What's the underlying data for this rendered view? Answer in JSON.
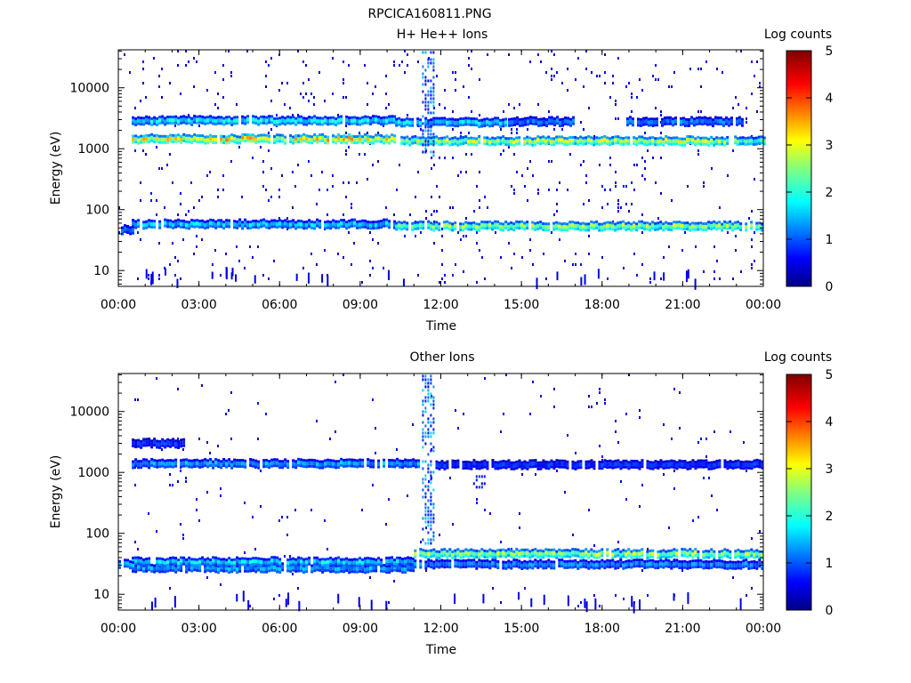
{
  "figure_title": "RPCICA160811.PNG",
  "chart_data": [
    {
      "type": "heatmap",
      "title": "H+ He++ Ions",
      "xlabel": "Time",
      "ylabel": "Energy (eV)",
      "x_ticks": [
        "00:00",
        "03:00",
        "06:00",
        "09:00",
        "12:00",
        "15:00",
        "18:00",
        "21:00",
        "00:00"
      ],
      "x_range_hours": [
        0,
        24
      ],
      "y_scale": "log",
      "y_ticks": [
        10,
        100,
        1000,
        10000
      ],
      "y_ticklabels": [
        "10",
        "100",
        "1000",
        "10000"
      ],
      "y_range": [
        5.5,
        42000
      ],
      "colorbar": {
        "label": "Log counts",
        "ticks": [
          "0",
          "1",
          "2",
          "3",
          "4",
          "5"
        ],
        "range": [
          0,
          5
        ]
      },
      "bands": [
        {
          "t0": 0.5,
          "t1": 10.3,
          "energy": 2800,
          "level": 1.7
        },
        {
          "t0": 10.3,
          "t1": 14.5,
          "energy": 2600,
          "level": 1.6
        },
        {
          "t0": 14.5,
          "t1": 16.9,
          "energy": 2700,
          "level": 1.1
        },
        {
          "t0": 18.9,
          "t1": 23.3,
          "energy": 2700,
          "level": 1.2
        },
        {
          "t0": 0.5,
          "t1": 10.3,
          "energy": 1400,
          "level": 3.0
        },
        {
          "t0": 10.5,
          "t1": 23.0,
          "energy": 1300,
          "level": 2.6
        },
        {
          "t0": 23.0,
          "t1": 24.0,
          "energy": 1300,
          "level": 2.0
        },
        {
          "t0": 0.5,
          "t1": 10.3,
          "energy": 56,
          "level": 1.5
        },
        {
          "t0": 10.3,
          "t1": 24.0,
          "energy": 52,
          "level": 2.4
        },
        {
          "t0": 0.0,
          "t1": 0.5,
          "energy": 45,
          "level": 1.0
        }
      ],
      "bursts": [
        {
          "t": 11.5,
          "e_min": 800,
          "e_max": 40000,
          "level": 1.0
        }
      ],
      "noise_density": 0.035
    },
    {
      "type": "heatmap",
      "title": "Other Ions",
      "xlabel": "Time",
      "ylabel": "Energy (eV)",
      "x_ticks": [
        "00:00",
        "03:00",
        "06:00",
        "09:00",
        "12:00",
        "15:00",
        "18:00",
        "21:00",
        "00:00"
      ],
      "x_range_hours": [
        0,
        24
      ],
      "y_scale": "log",
      "y_ticks": [
        10,
        100,
        1000,
        10000
      ],
      "y_ticklabels": [
        "10",
        "100",
        "1000",
        "10000"
      ],
      "y_range": [
        5.5,
        42000
      ],
      "colorbar": {
        "label": "Log counts",
        "ticks": [
          "0",
          "1",
          "2",
          "3",
          "4",
          "5"
        ],
        "range": [
          0,
          5
        ]
      },
      "bands": [
        {
          "t0": 0.5,
          "t1": 2.4,
          "energy": 2900,
          "level": 0.8
        },
        {
          "t0": 0.5,
          "t1": 11.2,
          "energy": 1350,
          "level": 1.3
        },
        {
          "t0": 11.8,
          "t1": 24.0,
          "energy": 1300,
          "level": 0.8
        },
        {
          "t0": 0.5,
          "t1": 11.0,
          "energy": 26,
          "level": 1.3
        },
        {
          "t0": 0.5,
          "t1": 11.0,
          "energy": 33,
          "level": 1.6
        },
        {
          "t0": 11.0,
          "t1": 24.0,
          "energy": 45,
          "level": 2.5
        },
        {
          "t0": 11.0,
          "t1": 24.0,
          "energy": 30,
          "level": 1.2
        },
        {
          "t0": 0.0,
          "t1": 0.5,
          "energy": 30,
          "level": 1.8
        }
      ],
      "bursts": [
        {
          "t": 11.5,
          "e_min": 70,
          "e_max": 40000,
          "level": 1.1
        },
        {
          "t": 13.4,
          "e_min": 500,
          "e_max": 900,
          "level": 0.6
        }
      ],
      "noise_density": 0.012
    }
  ]
}
